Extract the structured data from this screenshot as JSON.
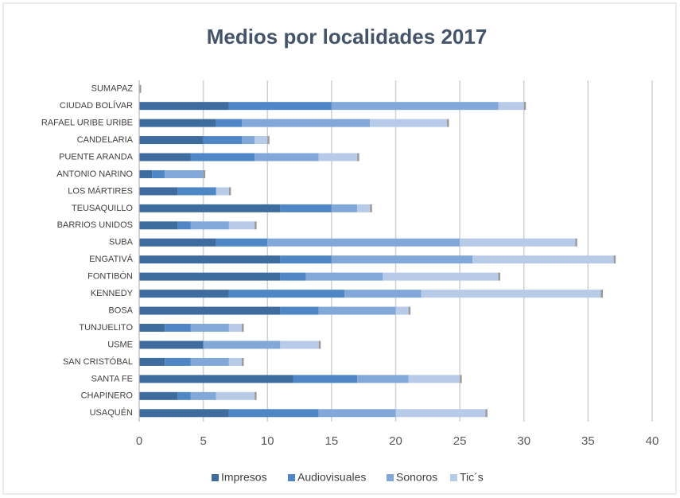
{
  "chart_data": {
    "type": "stacked_barh",
    "title": "Medios por localidades 2017",
    "categories": [
      "SUMAPAZ",
      "CIUDAD BOLÍVAR",
      "RAFAEL URIBE URIBE",
      "CANDELARIA",
      "PUENTE ARANDA",
      "ANTONIO NARINO",
      "LOS MÁRTIRES",
      "TEUSAQUILLO",
      "BARRIOS UNIDOS",
      "SUBA",
      "ENGATIVÁ",
      "FONTIBÓN",
      "KENNEDY",
      "BOSA",
      "TUNJUELITO",
      "USME",
      "SAN CRISTÓBAL",
      "SANTA FE",
      "CHAPINERO",
      "USAQUÉN"
    ],
    "series": [
      {
        "name": "Impresos",
        "color": "#3f6c9e",
        "values": [
          0,
          7,
          6,
          5,
          4,
          1,
          3,
          11,
          3,
          6,
          11,
          11,
          7,
          11,
          2,
          5,
          2,
          12,
          3,
          7
        ]
      },
      {
        "name": "Audiovisuales",
        "color": "#4f86c6",
        "values": [
          0,
          8,
          2,
          3,
          5,
          1,
          3,
          4,
          1,
          4,
          4,
          2,
          9,
          3,
          2,
          0,
          2,
          5,
          1,
          7
        ]
      },
      {
        "name": "Sonoros",
        "color": "#82a8d9",
        "values": [
          0,
          13,
          10,
          1,
          5,
          3,
          0,
          2,
          3,
          15,
          11,
          6,
          6,
          6,
          3,
          6,
          3,
          4,
          2,
          6
        ]
      },
      {
        "name": "Tic´s",
        "color": "#b7cbe9",
        "values": [
          0,
          2,
          6,
          1,
          3,
          0,
          1,
          1,
          2,
          9,
          11,
          9,
          14,
          1,
          1,
          3,
          1,
          4,
          3,
          7
        ]
      }
    ],
    "xlim": [
      0,
      40
    ],
    "xticks": [
      0,
      5,
      10,
      15,
      20,
      25,
      30,
      35,
      40
    ],
    "grid": true,
    "legend": "bottom"
  }
}
